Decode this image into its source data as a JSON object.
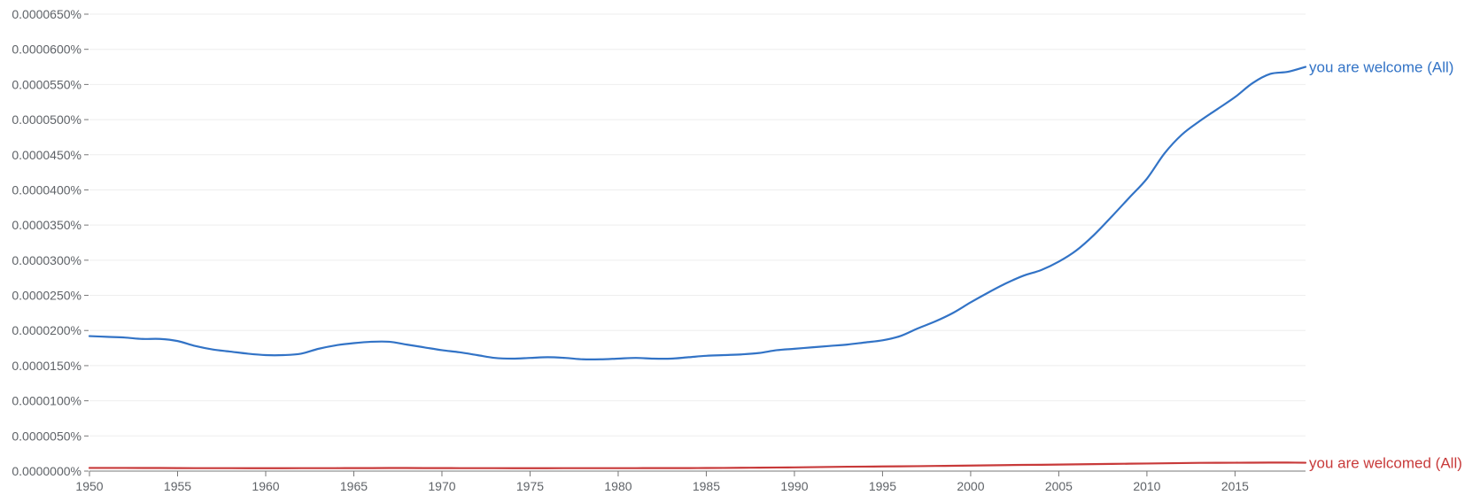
{
  "chart_data": {
    "type": "line",
    "title": "",
    "xlabel": "",
    "ylabel": "",
    "xlim": [
      1950,
      2019
    ],
    "ylim": [
      0,
      6.5e-07
    ],
    "grid": true,
    "legend": "inline-right",
    "y_ticks": [
      {
        "value": 0.0,
        "label": "0.0000000%"
      },
      {
        "value": 5e-08,
        "label": "0.0000050%"
      },
      {
        "value": 1e-07,
        "label": "0.0000100%"
      },
      {
        "value": 1.5e-07,
        "label": "0.0000150%"
      },
      {
        "value": 2e-07,
        "label": "0.0000200%"
      },
      {
        "value": 2.5e-07,
        "label": "0.0000250%"
      },
      {
        "value": 3e-07,
        "label": "0.0000300%"
      },
      {
        "value": 3.5e-07,
        "label": "0.0000350%"
      },
      {
        "value": 4e-07,
        "label": "0.0000400%"
      },
      {
        "value": 4.5e-07,
        "label": "0.0000450%"
      },
      {
        "value": 5e-07,
        "label": "0.0000500%"
      },
      {
        "value": 5.5e-07,
        "label": "0.0000550%"
      },
      {
        "value": 6e-07,
        "label": "0.0000600%"
      },
      {
        "value": 6.5e-07,
        "label": "0.0000650%"
      }
    ],
    "x_ticks": [
      {
        "value": 1950,
        "label": "1950"
      },
      {
        "value": 1955,
        "label": "1955"
      },
      {
        "value": 1960,
        "label": "1960"
      },
      {
        "value": 1965,
        "label": "1965"
      },
      {
        "value": 1970,
        "label": "1970"
      },
      {
        "value": 1975,
        "label": "1975"
      },
      {
        "value": 1980,
        "label": "1980"
      },
      {
        "value": 1985,
        "label": "1985"
      },
      {
        "value": 1990,
        "label": "1990"
      },
      {
        "value": 1995,
        "label": "1995"
      },
      {
        "value": 2000,
        "label": "2000"
      },
      {
        "value": 2005,
        "label": "2005"
      },
      {
        "value": 2010,
        "label": "2010"
      },
      {
        "value": 2015,
        "label": "2015"
      }
    ],
    "x": [
      1950,
      1951,
      1952,
      1953,
      1954,
      1955,
      1956,
      1957,
      1958,
      1959,
      1960,
      1961,
      1962,
      1963,
      1964,
      1965,
      1966,
      1967,
      1968,
      1969,
      1970,
      1971,
      1972,
      1973,
      1974,
      1975,
      1976,
      1977,
      1978,
      1979,
      1980,
      1981,
      1982,
      1983,
      1984,
      1985,
      1986,
      1987,
      1988,
      1989,
      1990,
      1991,
      1992,
      1993,
      1994,
      1995,
      1996,
      1997,
      1998,
      1999,
      2000,
      2001,
      2002,
      2003,
      2004,
      2005,
      2006,
      2007,
      2008,
      2009,
      2010,
      2011,
      2012,
      2013,
      2014,
      2015,
      2016,
      2017,
      2018,
      2019
    ],
    "series": [
      {
        "name": "you are welcome (All)",
        "color": "#3273c6",
        "values": [
          1.92e-07,
          1.91e-07,
          1.9e-07,
          1.88e-07,
          1.88e-07,
          1.85e-07,
          1.78e-07,
          1.73e-07,
          1.7e-07,
          1.67e-07,
          1.65e-07,
          1.65e-07,
          1.67e-07,
          1.74e-07,
          1.79e-07,
          1.82e-07,
          1.84e-07,
          1.84e-07,
          1.8e-07,
          1.76e-07,
          1.72e-07,
          1.69e-07,
          1.65e-07,
          1.61e-07,
          1.6e-07,
          1.61e-07,
          1.62e-07,
          1.61e-07,
          1.59e-07,
          1.59e-07,
          1.6e-07,
          1.61e-07,
          1.6e-07,
          1.6e-07,
          1.62e-07,
          1.64e-07,
          1.65e-07,
          1.66e-07,
          1.68e-07,
          1.72e-07,
          1.74e-07,
          1.76e-07,
          1.78e-07,
          1.8e-07,
          1.83e-07,
          1.86e-07,
          1.92e-07,
          2.03e-07,
          2.13e-07,
          2.25e-07,
          2.4e-07,
          2.54e-07,
          2.67e-07,
          2.78e-07,
          2.86e-07,
          2.98e-07,
          3.14e-07,
          3.36e-07,
          3.62e-07,
          3.89e-07,
          4.16e-07,
          4.52e-07,
          4.79e-07,
          4.98e-07,
          5.15e-07,
          5.32e-07,
          5.52e-07,
          5.65e-07,
          5.68e-07,
          5.75e-07
        ]
      },
      {
        "name": "you are welcomed (All)",
        "color": "#c83a3a",
        "values": [
          4.5e-09,
          4.5e-09,
          4.5e-09,
          4.4e-09,
          4.4e-09,
          4.3e-09,
          4.2e-09,
          4.2e-09,
          4.2e-09,
          4.1e-09,
          4.1e-09,
          4.1e-09,
          4.2e-09,
          4.2e-09,
          4.2e-09,
          4.3e-09,
          4.3e-09,
          4.4e-09,
          4.4e-09,
          4.3e-09,
          4.3e-09,
          4.2e-09,
          4.2e-09,
          4.2e-09,
          4.1e-09,
          4.1e-09,
          4.1e-09,
          4.2e-09,
          4.2e-09,
          4.2e-09,
          4.2e-09,
          4.2e-09,
          4.3e-09,
          4.3e-09,
          4.3e-09,
          4.4e-09,
          4.5e-09,
          4.7e-09,
          4.9e-09,
          5.1e-09,
          5.3e-09,
          5.6e-09,
          5.9e-09,
          6.2e-09,
          6.4e-09,
          6.6e-09,
          6.8e-09,
          7e-09,
          7.3e-09,
          7.6e-09,
          7.9e-09,
          8.2e-09,
          8.5e-09,
          8.8e-09,
          9e-09,
          9.3e-09,
          9.6e-09,
          9.9e-09,
          1.02e-08,
          1.05e-08,
          1.08e-08,
          1.11e-08,
          1.14e-08,
          1.17e-08,
          1.18e-08,
          1.19e-08,
          1.2e-08,
          1.21e-08,
          1.21e-08,
          1.19e-08
        ]
      }
    ],
    "colors": {
      "grid": "#eeeeee",
      "axis": "#777777",
      "tick_text": "#5f6368"
    }
  }
}
